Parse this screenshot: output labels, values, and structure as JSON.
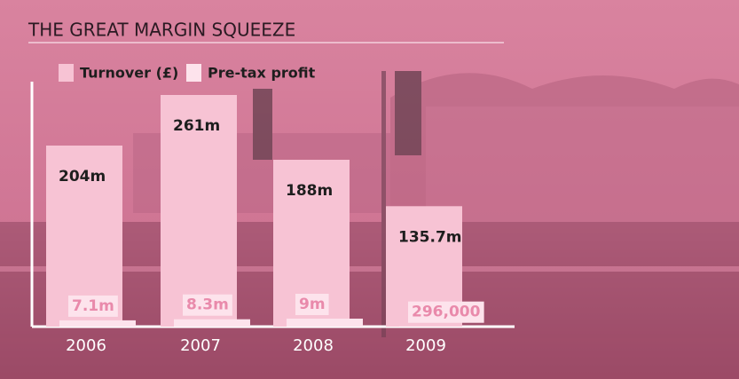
{
  "chart_data": {
    "type": "bar",
    "title": "THE GREAT MARGIN SQUEEZE",
    "categories": [
      "2006",
      "2007",
      "2008",
      "2009"
    ],
    "series": [
      {
        "name": "Turnover (£)",
        "color": "#f7c3d4",
        "label_color": "#1e1e1e",
        "values": [
          204,
          261,
          188,
          135.7
        ],
        "value_labels": [
          "204m",
          "261m",
          "188m",
          "135.7m"
        ]
      },
      {
        "name": "Pre-tax profit",
        "color": "#fde3ec",
        "label_color": "#e98aab",
        "values": [
          7.1,
          8.3,
          9,
          0.296
        ],
        "value_labels": [
          "7.1m",
          "8.3m",
          "9m",
          "296,000"
        ]
      }
    ]
  }
}
